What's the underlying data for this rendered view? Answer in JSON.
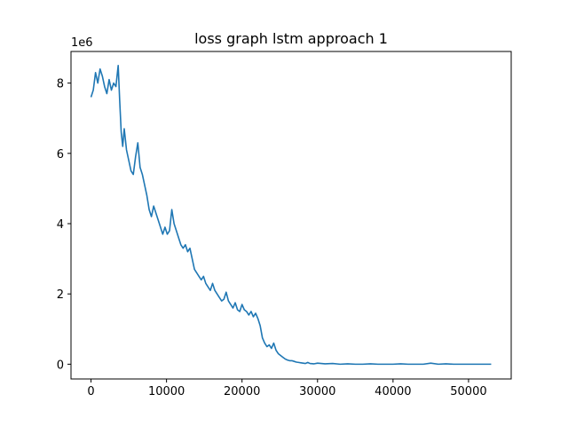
{
  "chart_data": {
    "type": "line",
    "title": "loss graph lstm approach 1",
    "xlabel": "",
    "ylabel": "",
    "y_offset_label": "1e6",
    "xlim": [
      -2650,
      55650
    ],
    "ylim": [
      -0.42,
      8.9
    ],
    "grid": false,
    "x_ticks": [
      0,
      10000,
      20000,
      30000,
      40000,
      50000
    ],
    "x_tick_labels": [
      "0",
      "10000",
      "20000",
      "30000",
      "40000",
      "50000"
    ],
    "y_ticks": [
      0,
      2,
      4,
      6,
      8
    ],
    "y_tick_labels": [
      "0",
      "2",
      "4",
      "6",
      "8"
    ],
    "series": [
      {
        "color": "#1f77b4",
        "x": [
          0,
          300,
          600,
          900,
          1200,
          1500,
          1800,
          2100,
          2400,
          2700,
          3000,
          3300,
          3600,
          3800,
          4000,
          4200,
          4400,
          4700,
          5000,
          5300,
          5600,
          5900,
          6200,
          6500,
          6800,
          7100,
          7400,
          7700,
          8000,
          8300,
          8600,
          8900,
          9200,
          9500,
          9800,
          10100,
          10400,
          10700,
          11000,
          11300,
          11600,
          11900,
          12200,
          12500,
          12800,
          13100,
          13400,
          13700,
          14000,
          14300,
          14600,
          14900,
          15200,
          15500,
          15800,
          16100,
          16400,
          16700,
          17000,
          17300,
          17600,
          17900,
          18200,
          18500,
          18800,
          19100,
          19400,
          19700,
          20000,
          20300,
          20600,
          20900,
          21200,
          21500,
          21800,
          22100,
          22400,
          22700,
          23000,
          23300,
          23600,
          23900,
          24200,
          24500,
          24800,
          25100,
          25400,
          25700,
          26000,
          26300,
          26600,
          26900,
          27200,
          27500,
          27800,
          28100,
          28400,
          28700,
          29000,
          29500,
          30000,
          31000,
          32000,
          33000,
          34000,
          35000,
          36000,
          37000,
          38000,
          39000,
          40000,
          41000,
          42000,
          43000,
          44000,
          45000,
          46000,
          47000,
          48000,
          49000,
          50000,
          51000,
          52000,
          53000
        ],
        "y": [
          7.6,
          7.8,
          8.3,
          8.0,
          8.4,
          8.2,
          7.9,
          7.7,
          8.1,
          7.8,
          8.0,
          7.9,
          8.5,
          7.5,
          6.6,
          6.2,
          6.7,
          6.1,
          5.8,
          5.5,
          5.4,
          5.9,
          6.3,
          5.6,
          5.4,
          5.1,
          4.8,
          4.4,
          4.2,
          4.5,
          4.3,
          4.1,
          3.9,
          3.7,
          3.9,
          3.7,
          3.8,
          4.4,
          4.0,
          3.8,
          3.6,
          3.4,
          3.3,
          3.4,
          3.2,
          3.3,
          3.0,
          2.7,
          2.6,
          2.5,
          2.4,
          2.5,
          2.3,
          2.2,
          2.1,
          2.3,
          2.1,
          2.0,
          1.9,
          1.8,
          1.85,
          2.05,
          1.8,
          1.7,
          1.6,
          1.75,
          1.55,
          1.5,
          1.7,
          1.55,
          1.5,
          1.4,
          1.5,
          1.35,
          1.45,
          1.3,
          1.1,
          0.75,
          0.6,
          0.5,
          0.55,
          0.45,
          0.6,
          0.4,
          0.3,
          0.25,
          0.2,
          0.15,
          0.12,
          0.1,
          0.1,
          0.08,
          0.06,
          0.05,
          0.04,
          0.03,
          0.02,
          0.05,
          0.02,
          0.01,
          0.03,
          0.01,
          0.02,
          0.0,
          0.01,
          0.0,
          0.0,
          0.01,
          0.0,
          0.0,
          0.0,
          0.01,
          0.0,
          0.0,
          0.0,
          0.03,
          0.0,
          0.01,
          0.0,
          0.0,
          0.0,
          0.0,
          0.0,
          0.0
        ]
      }
    ]
  }
}
